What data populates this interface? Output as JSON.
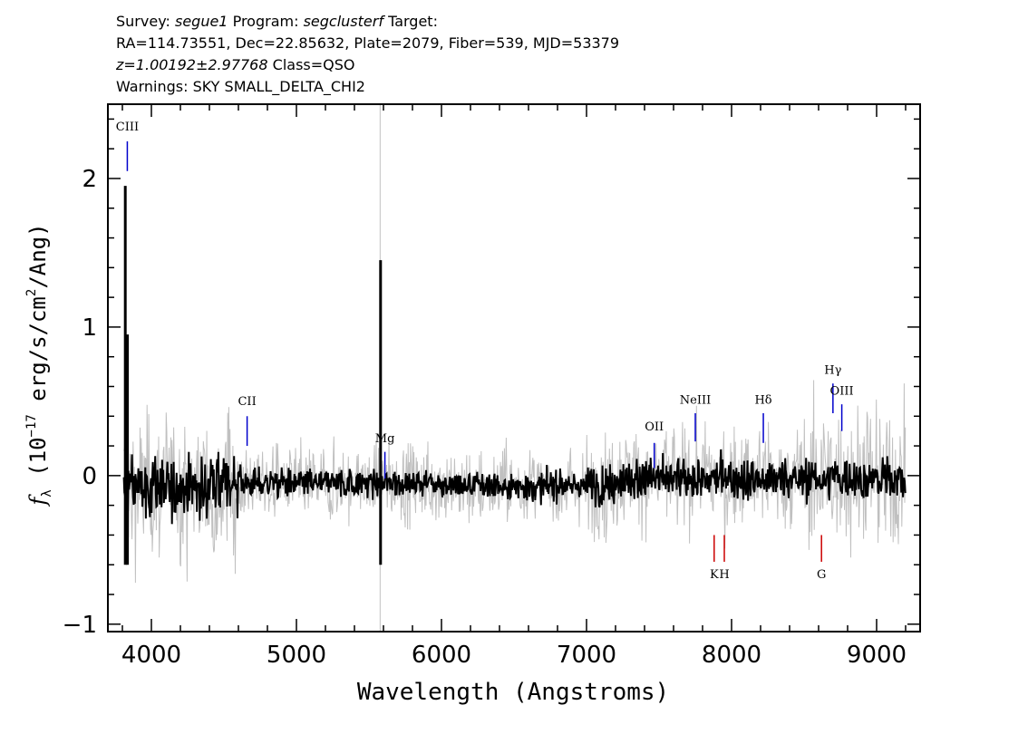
{
  "header": {
    "survey_label": "Survey:",
    "survey": "segue1",
    "program_label": "Program:",
    "program": "segclusterf",
    "target_label": "Target:",
    "coords": "RA=114.73551, Dec=22.85632, Plate=2079, Fiber=539, MJD=53379",
    "redshift": "z=1.00192±2.97768",
    "class": "Class=QSO",
    "warnings": "Warnings: SKY SMALL_DELTA_CHI2"
  },
  "chart_data": {
    "type": "line",
    "xlabel": "Wavelength (Angstroms)",
    "ylabel_prefix": "f",
    "ylabel_sub": "λ",
    "ylabel_rest": " (10",
    "ylabel_exp": "−17",
    "ylabel_units": " erg/s/cm",
    "ylabel_units_exp": "2",
    "ylabel_units_end": "/Ang)",
    "xlim": [
      3700,
      9300
    ],
    "ylim": [
      -1.05,
      2.5
    ],
    "x_ticks": [
      4000,
      5000,
      6000,
      7000,
      8000,
      9000
    ],
    "x_tick_labels": [
      "4000",
      "5000",
      "6000",
      "7000",
      "8000",
      "9000"
    ],
    "y_ticks": [
      -1,
      0,
      1,
      2
    ],
    "y_tick_labels": [
      "−1",
      "0",
      "1",
      "2"
    ],
    "colors": {
      "flux": "#000000",
      "error": "#c0c0c0",
      "emission": "#0000cc",
      "absorption": "#cc0000",
      "sky_line": "#c0c0c0"
    },
    "sky_line_x": 5577,
    "flux_spikes": [
      {
        "x": 3820,
        "y": 1.95
      },
      {
        "x": 3835,
        "y": 0.95
      },
      {
        "x": 5580,
        "y": 1.45
      }
    ],
    "emission_lines": [
      {
        "label": "CIII",
        "x": 3834
      },
      {
        "label": "CII",
        "x": 4660
      },
      {
        "label": "Mg",
        "x": 5610
      },
      {
        "label": "OII",
        "x": 7467
      },
      {
        "label": "NeIII",
        "x": 7750
      },
      {
        "label": "Hδ",
        "x": 8219
      },
      {
        "label": "Hγ",
        "x": 8699
      },
      {
        "label": "OIII",
        "x": 8760
      }
    ],
    "absorption_lines": [
      {
        "label": "K",
        "x": 7880
      },
      {
        "label": "H",
        "x": 7950
      },
      {
        "label": "G",
        "x": 8620
      }
    ]
  }
}
